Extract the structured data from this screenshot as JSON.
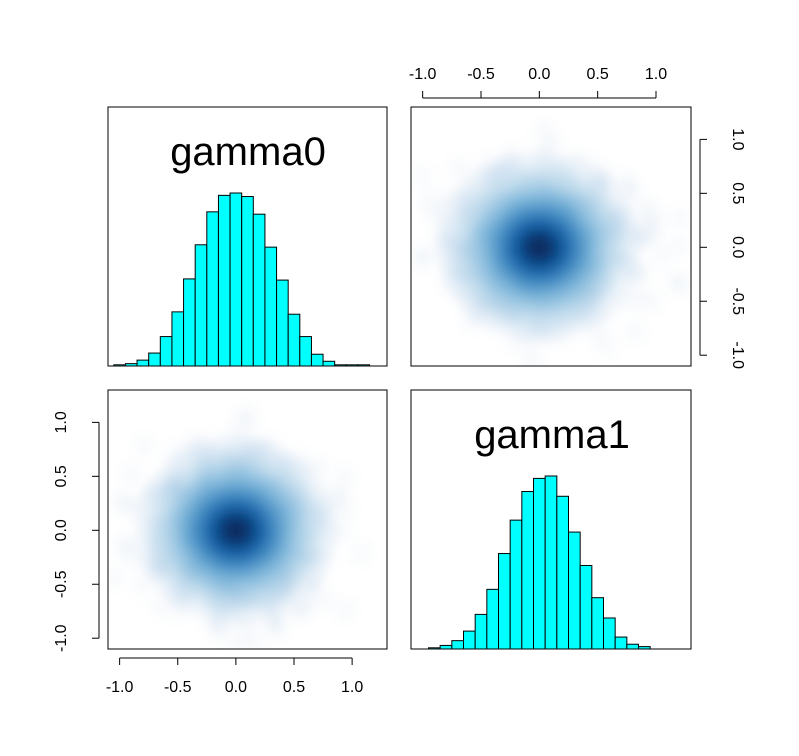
{
  "chart_data": {
    "type": "pairs",
    "variables": [
      "gamma0",
      "gamma1"
    ],
    "axis_range": [
      -1.1,
      1.3
    ],
    "ticks": [
      -1.0,
      -0.5,
      0.0,
      0.5,
      1.0
    ],
    "tick_labels": [
      "-1.0",
      "-0.5",
      "0.0",
      "0.5",
      "1.0"
    ],
    "fill_color": "#00FFFF",
    "density_color": "#08306B",
    "panels": [
      {
        "type": "histogram",
        "variable": "gamma0",
        "title": "gamma0",
        "bin_edges": [
          -1.05,
          -0.95,
          -0.85,
          -0.75,
          -0.65,
          -0.55,
          -0.45,
          -0.35,
          -0.25,
          -0.15,
          -0.05,
          0.05,
          0.15,
          0.25,
          0.35,
          0.45,
          0.55,
          0.65,
          0.75,
          0.85,
          0.95,
          1.05,
          1.15
        ],
        "counts": [
          1,
          2,
          5,
          11,
          25,
          46,
          74,
          103,
          131,
          145,
          147,
          144,
          129,
          101,
          73,
          44,
          25,
          10,
          4,
          1,
          1,
          1
        ]
      },
      {
        "type": "histogram",
        "variable": "gamma1",
        "title": "gamma1",
        "bin_edges": [
          -0.95,
          -0.85,
          -0.75,
          -0.65,
          -0.55,
          -0.45,
          -0.35,
          -0.25,
          -0.15,
          -0.05,
          0.05,
          0.15,
          0.25,
          0.35,
          0.45,
          0.55,
          0.65,
          0.75,
          0.85,
          0.95
        ],
        "counts": [
          1,
          3,
          7,
          15,
          29,
          50,
          80,
          108,
          132,
          143,
          145,
          128,
          98,
          70,
          43,
          26,
          10,
          4,
          2
        ]
      },
      {
        "type": "smoothscatter",
        "x": "gamma0",
        "y": "gamma1",
        "center": [
          0.0,
          0.0
        ],
        "sd": [
          0.33,
          0.33
        ]
      }
    ]
  }
}
